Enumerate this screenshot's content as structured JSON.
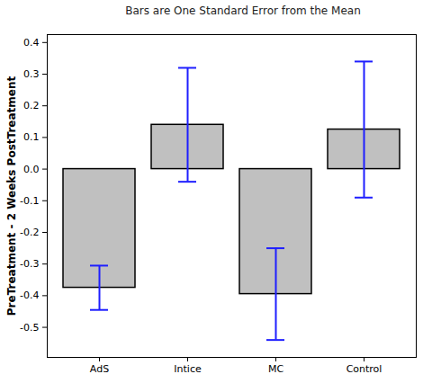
{
  "chart_data": {
    "type": "bar",
    "title": "Bars are One Standard Error from the Mean",
    "y_label": "PreTreatment - 2 Weeks PostTreatment",
    "categories": [
      "AdS",
      "Intice",
      "MC",
      "Control"
    ],
    "values": [
      -0.375,
      0.14,
      -0.395,
      0.125
    ],
    "errors": [
      0.07,
      0.18,
      0.145,
      0.215
    ],
    "color": "#c0c0c0",
    "error_color": "#1e1eff",
    "ylim": [
      -0.595,
      0.425
    ],
    "yticks": [
      -0.5,
      -0.4,
      -0.3,
      -0.2,
      -0.1,
      {
        "value": 0,
        "label": "0.0"
      },
      0.1,
      0.2,
      0.3,
      0.4
    ],
    "grid": false
  }
}
